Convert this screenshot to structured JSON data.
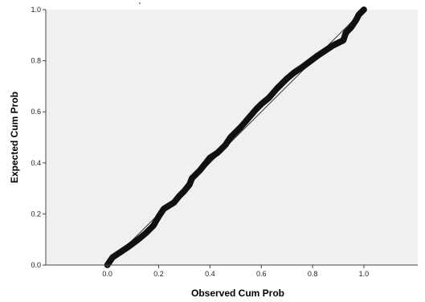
{
  "chart_data": {
    "type": "scatter",
    "title": "",
    "xlabel": "Observed Cum Prob",
    "ylabel": "Expected Cum Prob",
    "xlim": [
      -0.24,
      1.21
    ],
    "ylim": [
      0,
      1.0
    ],
    "x_ticks": [
      "0.0",
      "0.2",
      "0.4",
      "0.6",
      "0.8",
      "1.0"
    ],
    "y_ticks": [
      "0.0",
      "0.2",
      "0.4",
      "0.6",
      "0.8",
      "1.0"
    ],
    "grid": false,
    "plot_background": "#f0f0f0",
    "point_color": "#111111",
    "reference_line": {
      "from": [
        0,
        0
      ],
      "to": [
        1,
        1
      ]
    },
    "observed_path": [
      [
        0.0,
        0.0
      ],
      [
        0.02,
        0.03
      ],
      [
        0.05,
        0.05
      ],
      [
        0.08,
        0.07
      ],
      [
        0.1,
        0.085
      ],
      [
        0.12,
        0.1
      ],
      [
        0.15,
        0.125
      ],
      [
        0.18,
        0.155
      ],
      [
        0.2,
        0.19
      ],
      [
        0.22,
        0.22
      ],
      [
        0.26,
        0.245
      ],
      [
        0.28,
        0.27
      ],
      [
        0.3,
        0.29
      ],
      [
        0.32,
        0.315
      ],
      [
        0.33,
        0.34
      ],
      [
        0.36,
        0.37
      ],
      [
        0.38,
        0.395
      ],
      [
        0.4,
        0.42
      ],
      [
        0.43,
        0.44
      ],
      [
        0.46,
        0.47
      ],
      [
        0.48,
        0.5
      ],
      [
        0.5,
        0.52
      ],
      [
        0.52,
        0.54
      ],
      [
        0.55,
        0.575
      ],
      [
        0.58,
        0.61
      ],
      [
        0.6,
        0.63
      ],
      [
        0.63,
        0.655
      ],
      [
        0.66,
        0.69
      ],
      [
        0.68,
        0.71
      ],
      [
        0.7,
        0.73
      ],
      [
        0.73,
        0.755
      ],
      [
        0.76,
        0.775
      ],
      [
        0.78,
        0.79
      ],
      [
        0.8,
        0.805
      ],
      [
        0.82,
        0.82
      ],
      [
        0.85,
        0.84
      ],
      [
        0.88,
        0.86
      ],
      [
        0.9,
        0.87
      ],
      [
        0.92,
        0.88
      ],
      [
        0.93,
        0.91
      ],
      [
        0.95,
        0.93
      ],
      [
        0.97,
        0.96
      ],
      [
        0.98,
        0.98
      ],
      [
        1.0,
        1.0
      ]
    ]
  },
  "annotations": {
    "stray_mark": "'"
  }
}
